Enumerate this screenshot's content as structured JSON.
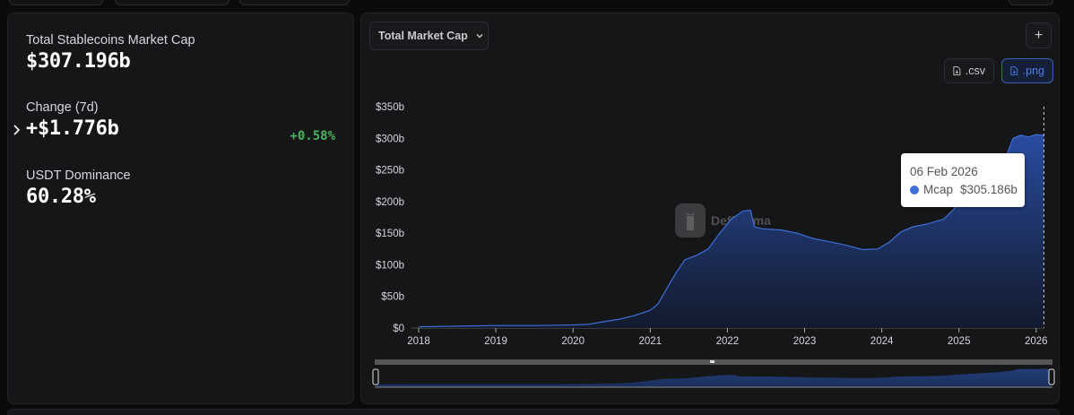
{
  "stats": {
    "market_cap": {
      "label": "Total Stablecoins Market Cap",
      "value": "$307.196b"
    },
    "change_7d": {
      "label": "Change (7d)",
      "value": "+$1.776b",
      "percent": "+0.58%"
    },
    "usdt_dominance": {
      "label": "USDT Dominance",
      "value": "60.28%"
    }
  },
  "chart_controls": {
    "metric_select": "Total Market Cap",
    "add_button": "+",
    "download_csv": ".csv",
    "download_png": ".png"
  },
  "tooltip": {
    "date": "06 Feb 2026",
    "series": "Mcap",
    "value": "$305.186b"
  },
  "watermark": "DefiLlama",
  "colors": {
    "series": "#3f6fd8",
    "positive": "#4bb45a",
    "accent": "#4d7fe6",
    "background": "#151618"
  },
  "chart_data": {
    "type": "area",
    "title": "Total Market Cap",
    "xlabel": "",
    "ylabel": "",
    "ylim": [
      0,
      350
    ],
    "xlim": [
      2018,
      2026.1
    ],
    "grid": false,
    "legend": "none",
    "y_ticks": [
      "$0",
      "$50b",
      "$100b",
      "$150b",
      "$200b",
      "$250b",
      "$300b",
      "$350b"
    ],
    "x_ticks": [
      "2018",
      "2019",
      "2020",
      "2021",
      "2022",
      "2023",
      "2024",
      "2025",
      "2026"
    ],
    "series": [
      {
        "name": "Mcap",
        "unit": "$b",
        "x": [
          2018.0,
          2018.5,
          2019.0,
          2019.5,
          2020.0,
          2020.2,
          2020.4,
          2020.6,
          2020.8,
          2021.0,
          2021.1,
          2021.25,
          2021.35,
          2021.45,
          2021.6,
          2021.75,
          2021.9,
          2022.05,
          2022.2,
          2022.3,
          2022.35,
          2022.45,
          2022.7,
          2022.9,
          2023.1,
          2023.3,
          2023.5,
          2023.75,
          2023.95,
          2024.1,
          2024.25,
          2024.4,
          2024.6,
          2024.8,
          2024.95,
          2025.1,
          2025.3,
          2025.45,
          2025.6,
          2025.7,
          2025.8,
          2025.9,
          2026.0,
          2026.1
        ],
        "values": [
          2,
          3,
          4,
          4,
          5,
          6,
          10,
          14,
          20,
          28,
          38,
          70,
          90,
          108,
          115,
          125,
          150,
          172,
          185,
          186,
          160,
          157,
          155,
          150,
          142,
          137,
          132,
          124,
          125,
          136,
          152,
          160,
          165,
          172,
          190,
          205,
          225,
          242,
          268,
          300,
          305,
          302,
          306,
          305
        ]
      }
    ],
    "annotations": [
      {
        "type": "tooltip",
        "x": "06 Feb 2026",
        "label": "Mcap",
        "value": "$305.186b"
      }
    ]
  }
}
